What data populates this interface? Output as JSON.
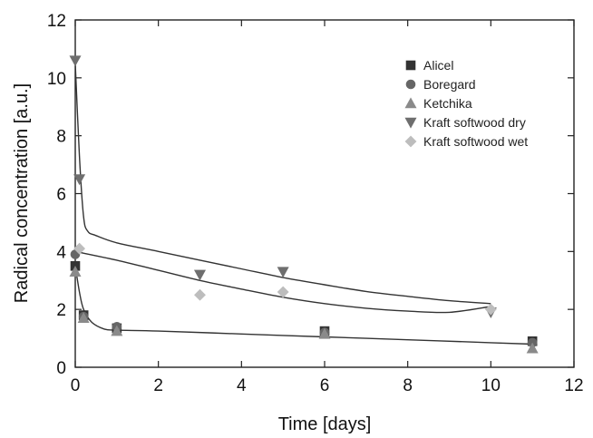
{
  "chart_data": {
    "type": "scatter",
    "title": "",
    "xlabel": "Time [days]",
    "ylabel": "Radical concentration [a.u.]",
    "xlim": [
      0,
      12
    ],
    "ylim": [
      0,
      12
    ],
    "xticks": [
      "0",
      "2",
      "4",
      "6",
      "8",
      "10",
      "12"
    ],
    "yticks": [
      "0",
      "2",
      "4",
      "6",
      "8",
      "10",
      "12"
    ],
    "grid": false,
    "legend_position": "top-right",
    "series": [
      {
        "name": "Alicel",
        "marker": "square",
        "color": "#333333",
        "points": [
          [
            0,
            3.5
          ],
          [
            0.2,
            1.8
          ],
          [
            1,
            1.35
          ],
          [
            6,
            1.25
          ],
          [
            11,
            0.9
          ]
        ]
      },
      {
        "name": "Boregard",
        "marker": "circle",
        "color": "#666666",
        "points": [
          [
            0,
            3.9
          ],
          [
            0.2,
            1.75
          ],
          [
            1,
            1.4
          ],
          [
            6,
            1.2
          ],
          [
            11,
            0.85
          ]
        ]
      },
      {
        "name": "Ketchika",
        "marker": "triangle-up",
        "color": "#8a8a8a",
        "points": [
          [
            0,
            3.3
          ],
          [
            0.2,
            1.7
          ],
          [
            1,
            1.25
          ],
          [
            6,
            1.15
          ],
          [
            11,
            0.65
          ]
        ]
      },
      {
        "name": "Kraft softwood dry",
        "marker": "triangle-down",
        "color": "#6e6e6e",
        "points": [
          [
            0,
            10.6
          ],
          [
            0.1,
            6.5
          ],
          [
            3,
            3.2
          ],
          [
            5,
            3.3
          ],
          [
            10,
            1.9
          ]
        ]
      },
      {
        "name": "Kraft softwood wet",
        "marker": "diamond",
        "color": "#bdbdbd",
        "points": [
          [
            0.1,
            4.1
          ],
          [
            3,
            2.5
          ],
          [
            5,
            2.6
          ],
          [
            10,
            2.0
          ]
        ]
      }
    ],
    "fit_curves": [
      {
        "color": "#333333",
        "points": [
          [
            0,
            10.5
          ],
          [
            0.1,
            7.3
          ],
          [
            0.2,
            5.2
          ],
          [
            0.3,
            4.7
          ],
          [
            0.5,
            4.55
          ],
          [
            1,
            4.3
          ],
          [
            2,
            4.0
          ],
          [
            3,
            3.7
          ],
          [
            4,
            3.4
          ],
          [
            5,
            3.1
          ],
          [
            6,
            2.85
          ],
          [
            7,
            2.62
          ],
          [
            8,
            2.45
          ],
          [
            9,
            2.3
          ],
          [
            10,
            2.2
          ]
        ]
      },
      {
        "color": "#333333",
        "points": [
          [
            0,
            4.0
          ],
          [
            1,
            3.7
          ],
          [
            2,
            3.35
          ],
          [
            3,
            3.0
          ],
          [
            4,
            2.7
          ],
          [
            5,
            2.42
          ],
          [
            6,
            2.2
          ],
          [
            7,
            2.04
          ],
          [
            8,
            1.94
          ],
          [
            9,
            1.9
          ],
          [
            10,
            2.1
          ]
        ]
      },
      {
        "color": "#333333",
        "points": [
          [
            0,
            3.5
          ],
          [
            0.1,
            2.6
          ],
          [
            0.2,
            2.0
          ],
          [
            0.4,
            1.55
          ],
          [
            0.7,
            1.32
          ],
          [
            1,
            1.28
          ],
          [
            2,
            1.25
          ],
          [
            4,
            1.15
          ],
          [
            6,
            1.05
          ],
          [
            8,
            0.95
          ],
          [
            10,
            0.85
          ],
          [
            11,
            0.8
          ]
        ]
      }
    ]
  }
}
